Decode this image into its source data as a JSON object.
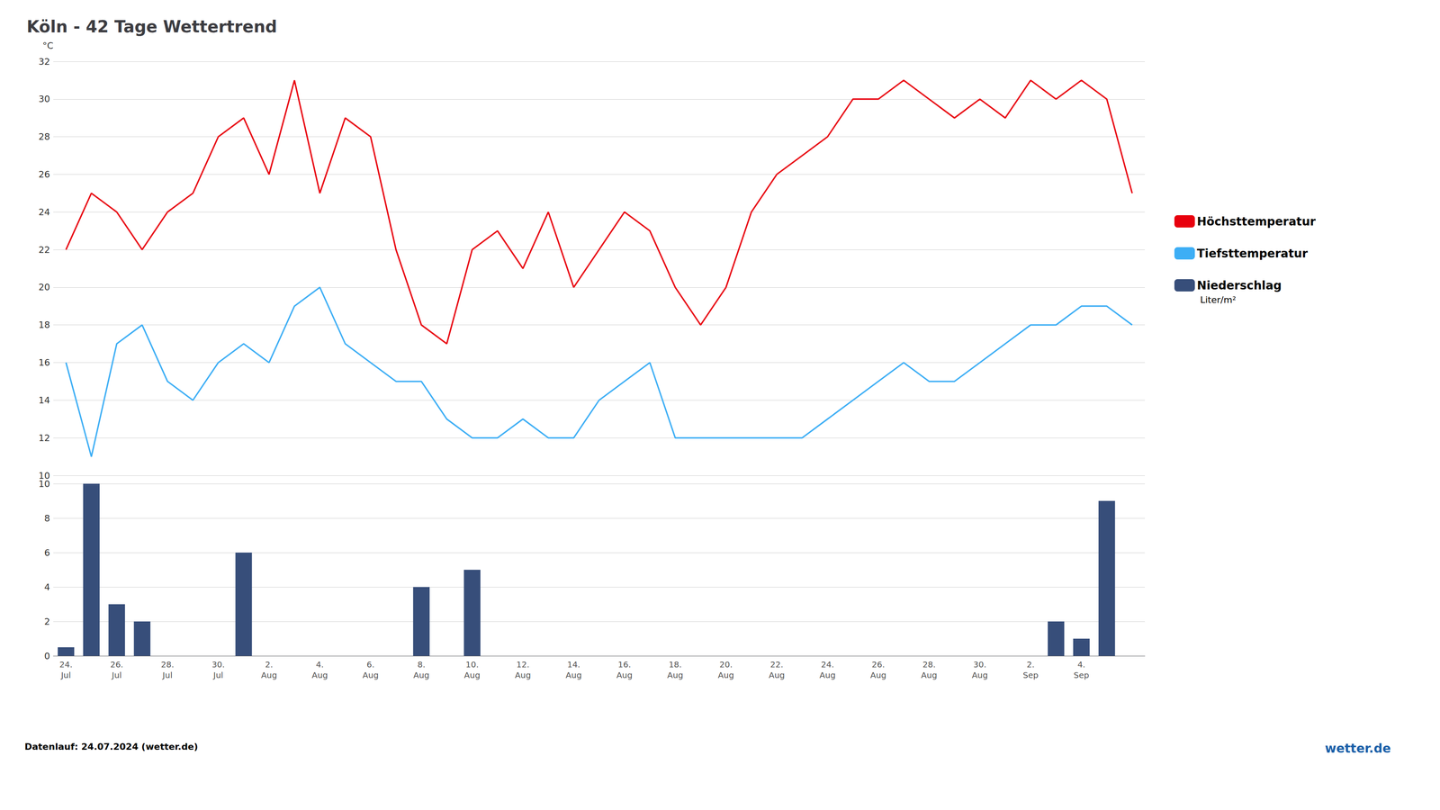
{
  "chart_data": [
    {
      "type": "line",
      "title": "Köln - 42 Tage Wettertrend",
      "y_label": "°C",
      "categories": [
        "24.\nJul",
        null,
        "26.\nJul",
        null,
        "28.\nJul",
        null,
        "30.\nJul",
        null,
        "2.\nAug",
        null,
        "4.\nAug",
        null,
        "6.\nAug",
        null,
        "8.\nAug",
        null,
        "10.\nAug",
        null,
        "12.\nAug",
        null,
        "14.\nAug",
        null,
        "16.\nAug",
        null,
        "18.\nAug",
        null,
        "20.\nAug",
        null,
        "22.\nAug",
        null,
        "24.\nAug",
        null,
        "26.\nAug",
        null,
        "28.\nAug",
        null,
        "30.\nAug",
        null,
        "2.\nSep",
        null,
        "4.\nSep",
        null,
        null
      ],
      "series": [
        {
          "name": "Höchsttemperatur",
          "color": "#e8000d",
          "values": [
            22,
            25,
            24,
            22,
            24,
            25,
            28,
            29,
            26,
            31,
            25,
            29,
            28,
            22,
            18,
            17,
            22,
            23,
            21,
            24,
            20,
            22,
            24,
            23,
            20,
            18,
            20,
            24,
            26,
            27,
            28,
            30,
            30,
            31,
            30,
            29,
            30,
            29,
            31,
            30,
            31,
            30,
            25
          ]
        },
        {
          "name": "Tiefsttemperatur",
          "color": "#3daef5",
          "values": [
            16,
            11,
            17,
            18,
            15,
            14,
            16,
            17,
            16,
            19,
            20,
            17,
            16,
            15,
            15,
            13,
            12,
            12,
            13,
            12,
            12,
            14,
            15,
            16,
            12,
            12,
            12,
            12,
            12,
            12,
            13,
            14,
            15,
            16,
            15,
            15,
            16,
            17,
            18,
            18,
            19,
            19,
            18
          ]
        }
      ],
      "ylim": [
        10,
        32
      ],
      "yticks": [
        10,
        12,
        14,
        16,
        18,
        20,
        22,
        24,
        26,
        28,
        30,
        32
      ],
      "grid": true,
      "legend": "right",
      "tick_labels": "y",
      "annotations": [
        "Datenlauf: 24.07.2024 (wetter.de)",
        "wetter.de"
      ]
    },
    {
      "type": "bar",
      "categories": [
        "24.\nJul",
        null,
        "26.\nJul",
        null,
        "28.\nJul",
        null,
        "30.\nJul",
        null,
        "2.\nAug",
        null,
        "4.\nAug",
        null,
        "6.\nAug",
        null,
        "8.\nAug",
        null,
        "10.\nAug",
        null,
        "12.\nAug",
        null,
        "14.\nAug",
        null,
        "16.\nAug",
        null,
        "18.\nAug",
        null,
        "20.\nAug",
        null,
        "22.\nAug",
        null,
        "24.\nAug",
        null,
        "26.\nAug",
        null,
        "28.\nAug",
        null,
        "30.\nAug",
        null,
        "2.\nSep",
        null,
        "4.\nSep",
        null,
        null
      ],
      "series": [
        {
          "name": "Niederschlag",
          "color": "#374e7a",
          "values": [
            0.5,
            10,
            3,
            2,
            0,
            0,
            0,
            6,
            0,
            0,
            0,
            0,
            0,
            0,
            4,
            0,
            5,
            0,
            0,
            0,
            0,
            0,
            0,
            0,
            0,
            0,
            0,
            0,
            0,
            0,
            0,
            0,
            0,
            0,
            0,
            0,
            0,
            0,
            0,
            2,
            1,
            9,
            0
          ]
        }
      ],
      "ylim": [
        0,
        10
      ],
      "yticks": [
        0,
        2,
        4,
        6,
        8,
        10
      ],
      "grid": true,
      "annotations": [
        "Liter/m²"
      ]
    }
  ]
}
